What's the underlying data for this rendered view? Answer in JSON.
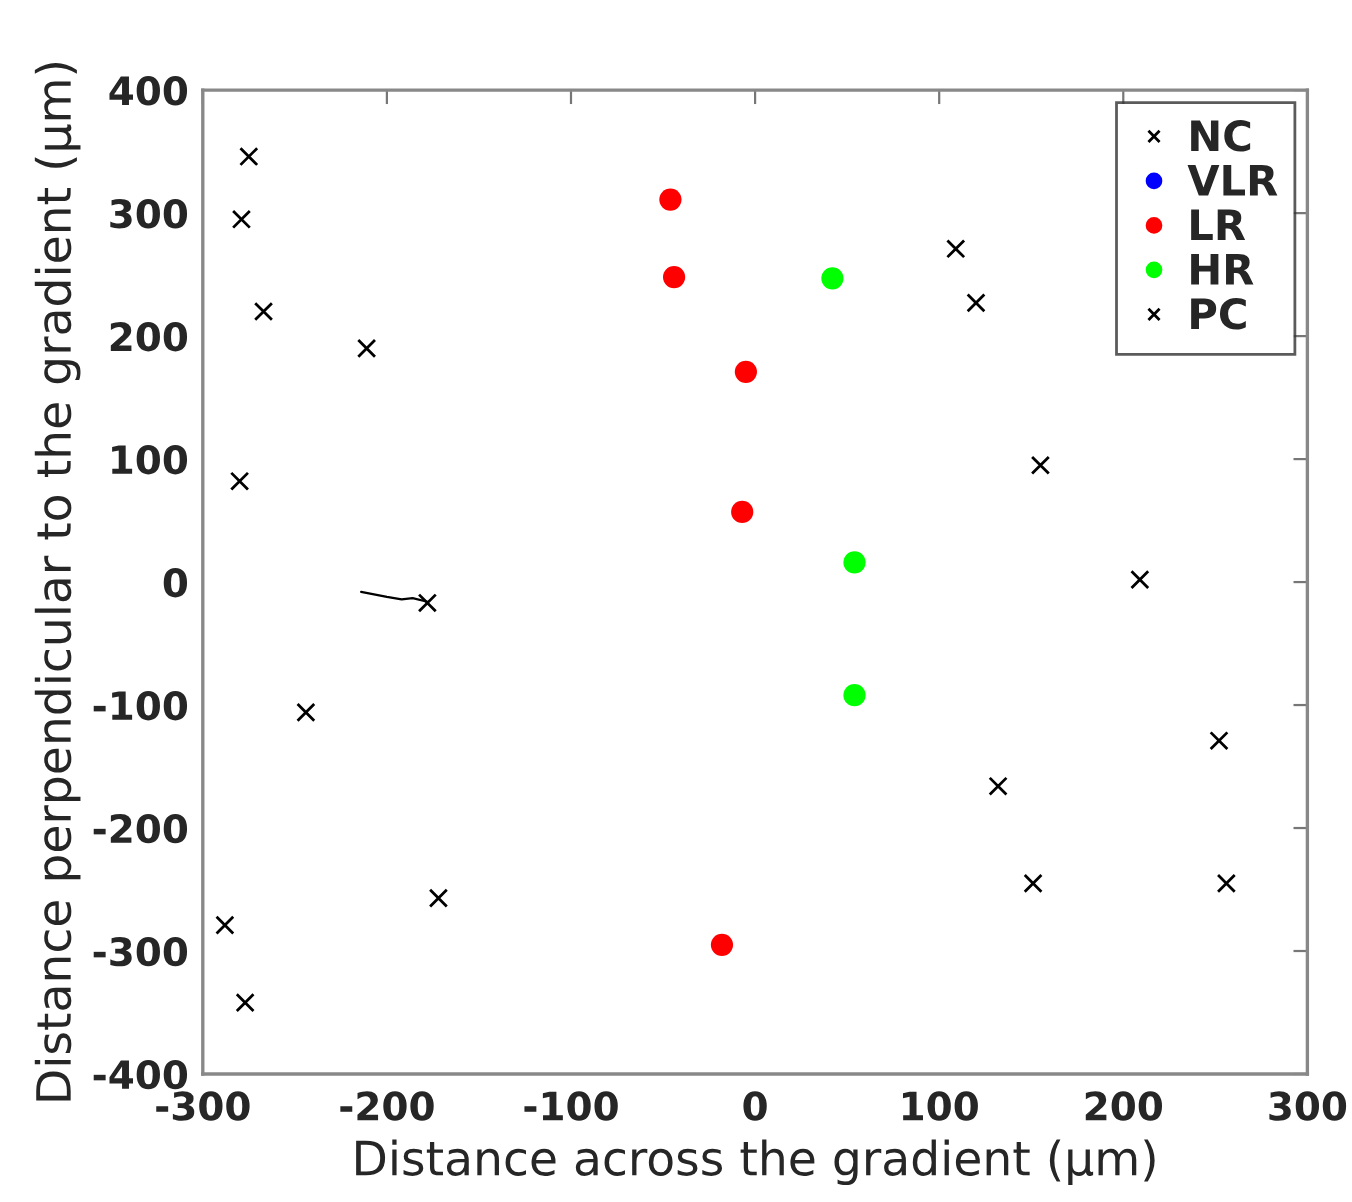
{
  "chart_data": {
    "type": "scatter",
    "xlabel": "Distance across the gradient (µm)",
    "ylabel": "Distance perpendicular to the gradient (µm)",
    "xlim": [
      -300,
      300
    ],
    "ylim": [
      -400,
      400
    ],
    "xticks": [
      -300,
      -200,
      -100,
      0,
      100,
      200,
      300
    ],
    "yticks": [
      -400,
      -300,
      -200,
      -100,
      0,
      100,
      200,
      300,
      400
    ],
    "grid": false,
    "legend": "top right",
    "series": [
      {
        "name": "NC",
        "color": "#000000",
        "marker": "cross",
        "x": [
          -275,
          -279,
          -267,
          -211,
          -280,
          -178,
          -244,
          -172,
          -288,
          -277,
          109,
          120,
          155,
          209,
          132,
          151,
          252,
          256
        ],
        "values": [
          346,
          295,
          220,
          190,
          82,
          -17,
          -106,
          -257,
          -279,
          -342,
          271,
          227,
          95,
          2,
          -166,
          -245,
          -129,
          -245
        ]
      },
      {
        "name": "VLR",
        "color": "#0000ff",
        "marker": "circle"
      },
      {
        "name": "LR",
        "color": "#ff0000",
        "marker": "circle",
        "x": [
          -46,
          -44,
          -5,
          -7,
          -18
        ],
        "values": [
          311,
          248,
          171,
          57,
          -295
        ]
      },
      {
        "name": "HR",
        "color": "#00ff00",
        "marker": "circle",
        "x": [
          42,
          54,
          54
        ],
        "values": [
          247,
          16,
          -92
        ]
      },
      {
        "name": "PC",
        "color": "#000000",
        "marker": "cross"
      },
      {
        "type": "line",
        "color": "#000000",
        "marker": "none",
        "x": [
          -214,
          -200,
          -192,
          -186,
          -178
        ],
        "values": [
          -8,
          -12,
          -14,
          -13,
          -16
        ]
      }
    ]
  }
}
